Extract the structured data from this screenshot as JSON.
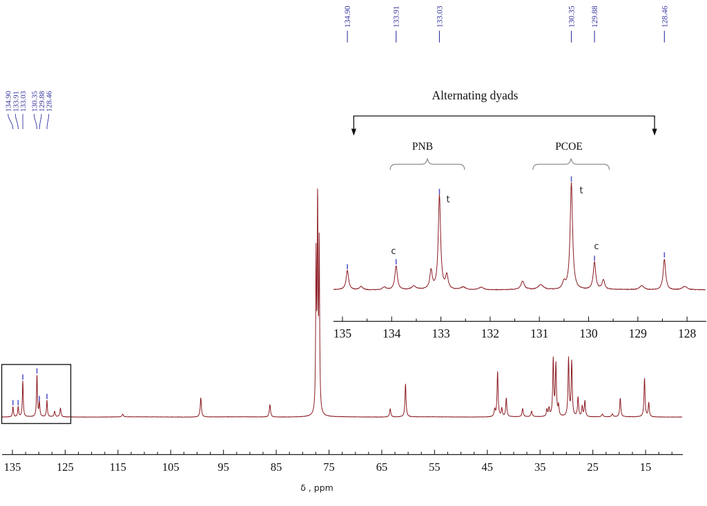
{
  "chart_data": {
    "type": "line",
    "description": "13C NMR spectrum with expanded aromatic-region inset",
    "xlabel": "δ ,  ppm",
    "trace_color": "#8b1b22",
    "peak_label_color": "#3232a0",
    "peak_tick_color": "#5656c8",
    "axis_color": "#1c1c1c",
    "peak_list": [
      {
        "label": "134.90",
        "ppm": 134.9
      },
      {
        "label": "133.91",
        "ppm": 133.91
      },
      {
        "label": "133.03",
        "ppm": 133.03
      },
      {
        "label": "130.35",
        "ppm": 130.35
      },
      {
        "label": "129.88",
        "ppm": 129.88
      },
      {
        "label": "128.46",
        "ppm": 128.46
      }
    ],
    "main_spectrum": {
      "xlim": [
        137.0,
        8.0
      ],
      "axis_ticks_major": [
        135,
        125,
        115,
        105,
        95,
        85,
        75,
        65,
        55,
        45,
        35,
        25,
        15
      ],
      "minor_tick_step": 2.5,
      "boxed_region_ppm": [
        137.0,
        123.9
      ],
      "peaks": [
        [
          134.9,
          15,
          0.1,
          1
        ],
        [
          133.91,
          15,
          0.1,
          1
        ],
        [
          133.03,
          52,
          0.1,
          1
        ],
        [
          130.35,
          61,
          0.1,
          1
        ],
        [
          129.88,
          21,
          0.1,
          1
        ],
        [
          128.46,
          24,
          0.1,
          1
        ],
        [
          127.0,
          8,
          0.12,
          0
        ],
        [
          125.9,
          13,
          0.12,
          0
        ],
        [
          114.1,
          4,
          0.15,
          0
        ],
        [
          99.3,
          28,
          0.13,
          0
        ],
        [
          86.2,
          18,
          0.13,
          0
        ],
        [
          77.45,
          220,
          0.09,
          0
        ],
        [
          77.16,
          300,
          0.09,
          0
        ],
        [
          76.85,
          240,
          0.09,
          0
        ],
        [
          63.4,
          12,
          0.13,
          0
        ],
        [
          60.5,
          48,
          0.12,
          0
        ],
        [
          43.6,
          10,
          0.13,
          0
        ],
        [
          43.05,
          65,
          0.12,
          0
        ],
        [
          42.25,
          12,
          0.12,
          0
        ],
        [
          41.4,
          27,
          0.12,
          0
        ],
        [
          38.3,
          12,
          0.13,
          0
        ],
        [
          36.6,
          8,
          0.14,
          0
        ],
        [
          33.7,
          10,
          0.12,
          0
        ],
        [
          33.3,
          12,
          0.12,
          0
        ],
        [
          32.5,
          82,
          0.12,
          0
        ],
        [
          32.0,
          75,
          0.12,
          0
        ],
        [
          31.5,
          15,
          0.12,
          0
        ],
        [
          29.6,
          84,
          0.12,
          0
        ],
        [
          29.0,
          79,
          0.12,
          0
        ],
        [
          27.8,
          28,
          0.12,
          0
        ],
        [
          27.0,
          15,
          0.12,
          0
        ],
        [
          26.5,
          23,
          0.12,
          0
        ],
        [
          23.2,
          4,
          0.15,
          0
        ],
        [
          21.3,
          4,
          0.15,
          0
        ],
        [
          19.8,
          27,
          0.12,
          0
        ],
        [
          15.2,
          56,
          0.12,
          0
        ],
        [
          14.4,
          20,
          0.12,
          0
        ]
      ]
    },
    "inset_spectrum": {
      "xlim": [
        135.2,
        127.6
      ],
      "axis_ticks_major": [
        135,
        134,
        133,
        132,
        131,
        130,
        129,
        128
      ],
      "minor_tick_step": 0.5,
      "peaks": [
        [
          134.9,
          28,
          0.03,
          1
        ],
        [
          134.62,
          5,
          0.04,
          0
        ],
        [
          134.15,
          4,
          0.05,
          0
        ],
        [
          133.91,
          35,
          0.03,
          1
        ],
        [
          133.55,
          5,
          0.05,
          0
        ],
        [
          133.2,
          27,
          0.028,
          0
        ],
        [
          133.03,
          137,
          0.028,
          1
        ],
        [
          132.88,
          20,
          0.03,
          0
        ],
        [
          132.55,
          4,
          0.06,
          0
        ],
        [
          132.18,
          4,
          0.06,
          0
        ],
        [
          131.34,
          12,
          0.04,
          0
        ],
        [
          130.97,
          7,
          0.06,
          0
        ],
        [
          130.5,
          10,
          0.035,
          0
        ],
        [
          130.35,
          155,
          0.03,
          1
        ],
        [
          129.88,
          40,
          0.03,
          1
        ],
        [
          129.7,
          14,
          0.03,
          0
        ],
        [
          128.92,
          6,
          0.05,
          0
        ],
        [
          128.46,
          45,
          0.03,
          1
        ],
        [
          128.05,
          5,
          0.06,
          0
        ]
      ]
    }
  },
  "annotations": {
    "title": "Alternating dyads",
    "arrow_span_ppm": [
      134.77,
      128.66
    ],
    "groups": [
      {
        "label": "PNB",
        "brace_ppm": [
          134.03,
          132.52
        ]
      },
      {
        "label": "PCOE",
        "brace_ppm": [
          131.13,
          129.58
        ]
      }
    ],
    "ct_labels": [
      {
        "text": "c",
        "ppm": 133.91
      },
      {
        "text": "t",
        "ppm": 133.03
      },
      {
        "text": "t",
        "ppm": 130.35
      },
      {
        "text": "c",
        "ppm": 129.88
      }
    ]
  }
}
